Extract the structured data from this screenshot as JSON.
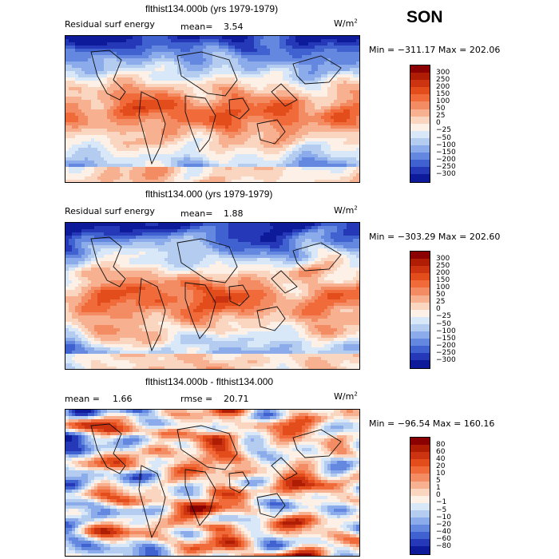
{
  "season": "SON",
  "panels": [
    {
      "title": "flthist134.000b (yrs 1979-1979)",
      "left_label": "Residual surf energy",
      "stat1_label": "mean=",
      "stat1_value": "3.54",
      "stat2_label": "",
      "stat2_value": "",
      "units": "W/m",
      "units_sup": "2",
      "minmax": "Min = −311.17 Max = 202.06",
      "colorbar": {
        "levels": [
          "300",
          "250",
          "200",
          "150",
          "100",
          "50",
          "25",
          "0",
          "−25",
          "−50",
          "−100",
          "−150",
          "−200",
          "−250",
          "−300"
        ],
        "colors": [
          "#8b0000",
          "#b01d05",
          "#cc3310",
          "#e34d1c",
          "#f06a3a",
          "#f48c63",
          "#f8b190",
          "#fad6c0",
          "#fdf0e6",
          "#d8e8f8",
          "#b3ccf0",
          "#8cabea",
          "#6488e0",
          "#3f62d0",
          "#2438b8",
          "#0d1a9a"
        ]
      },
      "chart_data": {
        "type": "heatmap",
        "title": "flthist134.000b (yrs 1979-1979)",
        "variable": "Residual surf energy",
        "units": "W/m2",
        "mean": 3.54,
        "min": -311.17,
        "max": 202.06,
        "contour_levels": [
          300,
          250,
          200,
          150,
          100,
          50,
          25,
          0,
          -25,
          -50,
          -100,
          -150,
          -200,
          -250,
          -300
        ]
      }
    },
    {
      "title": "flthist134.000 (yrs 1979-1979)",
      "left_label": "Residual surf energy",
      "stat1_label": "mean=",
      "stat1_value": "1.88",
      "stat2_label": "",
      "stat2_value": "",
      "units": "W/m",
      "units_sup": "2",
      "minmax": "Min = −303.29 Max = 202.60",
      "colorbar": {
        "levels": [
          "300",
          "250",
          "200",
          "150",
          "100",
          "50",
          "25",
          "0",
          "−25",
          "−50",
          "−100",
          "−150",
          "−200",
          "−250",
          "−300"
        ],
        "colors": [
          "#8b0000",
          "#b01d05",
          "#cc3310",
          "#e34d1c",
          "#f06a3a",
          "#f48c63",
          "#f8b190",
          "#fad6c0",
          "#fdf0e6",
          "#d8e8f8",
          "#b3ccf0",
          "#8cabea",
          "#6488e0",
          "#3f62d0",
          "#2438b8",
          "#0d1a9a"
        ]
      },
      "chart_data": {
        "type": "heatmap",
        "title": "flthist134.000 (yrs 1979-1979)",
        "variable": "Residual surf energy",
        "units": "W/m2",
        "mean": 1.88,
        "min": -303.29,
        "max": 202.6,
        "contour_levels": [
          300,
          250,
          200,
          150,
          100,
          50,
          25,
          0,
          -25,
          -50,
          -100,
          -150,
          -200,
          -250,
          -300
        ]
      }
    },
    {
      "title": "flthist134.000b - flthist134.000",
      "left_label": "",
      "stat1_label": "mean =",
      "stat1_value": "1.66",
      "stat2_label": "rmse =",
      "stat2_value": "20.71",
      "units": "W/m",
      "units_sup": "2",
      "minmax": "Min = −96.54 Max = 160.16",
      "colorbar": {
        "levels": [
          "80",
          "60",
          "40",
          "20",
          "10",
          "5",
          "1",
          "0",
          "−1",
          "−5",
          "−10",
          "−20",
          "−40",
          "−60",
          "−80"
        ],
        "colors": [
          "#8b0000",
          "#b01d05",
          "#cc3310",
          "#e34d1c",
          "#f06a3a",
          "#f48c63",
          "#f8b190",
          "#fad6c0",
          "#fdf0e6",
          "#d8e8f8",
          "#b3ccf0",
          "#8cabea",
          "#6488e0",
          "#3f62d0",
          "#2438b8",
          "#0d1a9a"
        ]
      },
      "chart_data": {
        "type": "heatmap",
        "title": "flthist134.000b - flthist134.000",
        "units": "W/m2",
        "mean": 1.66,
        "rmse": 20.71,
        "min": -96.54,
        "max": 160.16,
        "contour_levels": [
          80,
          60,
          40,
          20,
          10,
          5,
          1,
          0,
          -1,
          -5,
          -10,
          -20,
          -40,
          -60,
          -80
        ]
      }
    }
  ]
}
